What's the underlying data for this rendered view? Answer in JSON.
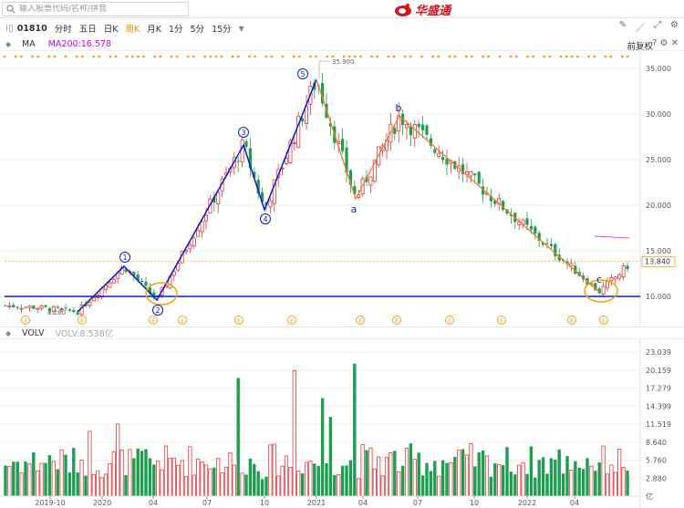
{
  "search": {
    "placeholder": "输入股票代码/名称/拼音"
  },
  "brand": {
    "name": "华盛通"
  },
  "toolbar": {
    "code": "01810",
    "periods": [
      "分时",
      "五日",
      "日K",
      "周K",
      "月K",
      "1分",
      "5分",
      "15分"
    ],
    "active_period": "周K"
  },
  "ma_row": {
    "label": "MA",
    "ma200": "MA200:16.578",
    "adjust": "前复权"
  },
  "vol_row": {
    "label": "VOLV",
    "value": "VOLV:8.538亿"
  },
  "price_axis": [
    "35.000",
    "30.000",
    "25.000",
    "20.000",
    "15.000",
    "10.000"
  ],
  "last_price": "13.840",
  "high_label": "35.900",
  "low_label": "8.280",
  "vol_axis": [
    "23.039",
    "20.159",
    "17.279",
    "14.399",
    "11.519",
    "8.640",
    "5.760",
    "2.880",
    "亿"
  ],
  "x_axis": [
    "2019-10",
    "2020",
    "04",
    "07",
    "10",
    "2021",
    "04",
    "07",
    "10",
    "2022",
    "04"
  ],
  "wave_labels": [
    "1",
    "2",
    "3",
    "4",
    "5",
    "a",
    "b",
    "c"
  ],
  "colors": {
    "up": "#e0383e",
    "down": "#1f9e52",
    "wave": "#0a1cc8",
    "corr": "#f07a2a",
    "ma200": "#e040e0",
    "accent": "#e08a00"
  },
  "chart_data": {
    "type": "candlestick",
    "title": "",
    "xlabel": "",
    "ylabel": "",
    "ylim": [
      8,
      36
    ],
    "wave_points": [
      {
        "label": "start",
        "price": 8.3
      },
      {
        "label": "1",
        "price": 13.3
      },
      {
        "label": "2",
        "price": 9.6
      },
      {
        "label": "3",
        "price": 26.6
      },
      {
        "label": "4",
        "price": 19.5
      },
      {
        "label": "5",
        "price": 33.8
      },
      {
        "label": "a",
        "price": 20.7
      },
      {
        "label": "b",
        "price": 29.8
      },
      {
        "label": "c",
        "price": 10.5
      }
    ],
    "support_level": 10.0,
    "ma200_value": 16.578
  }
}
